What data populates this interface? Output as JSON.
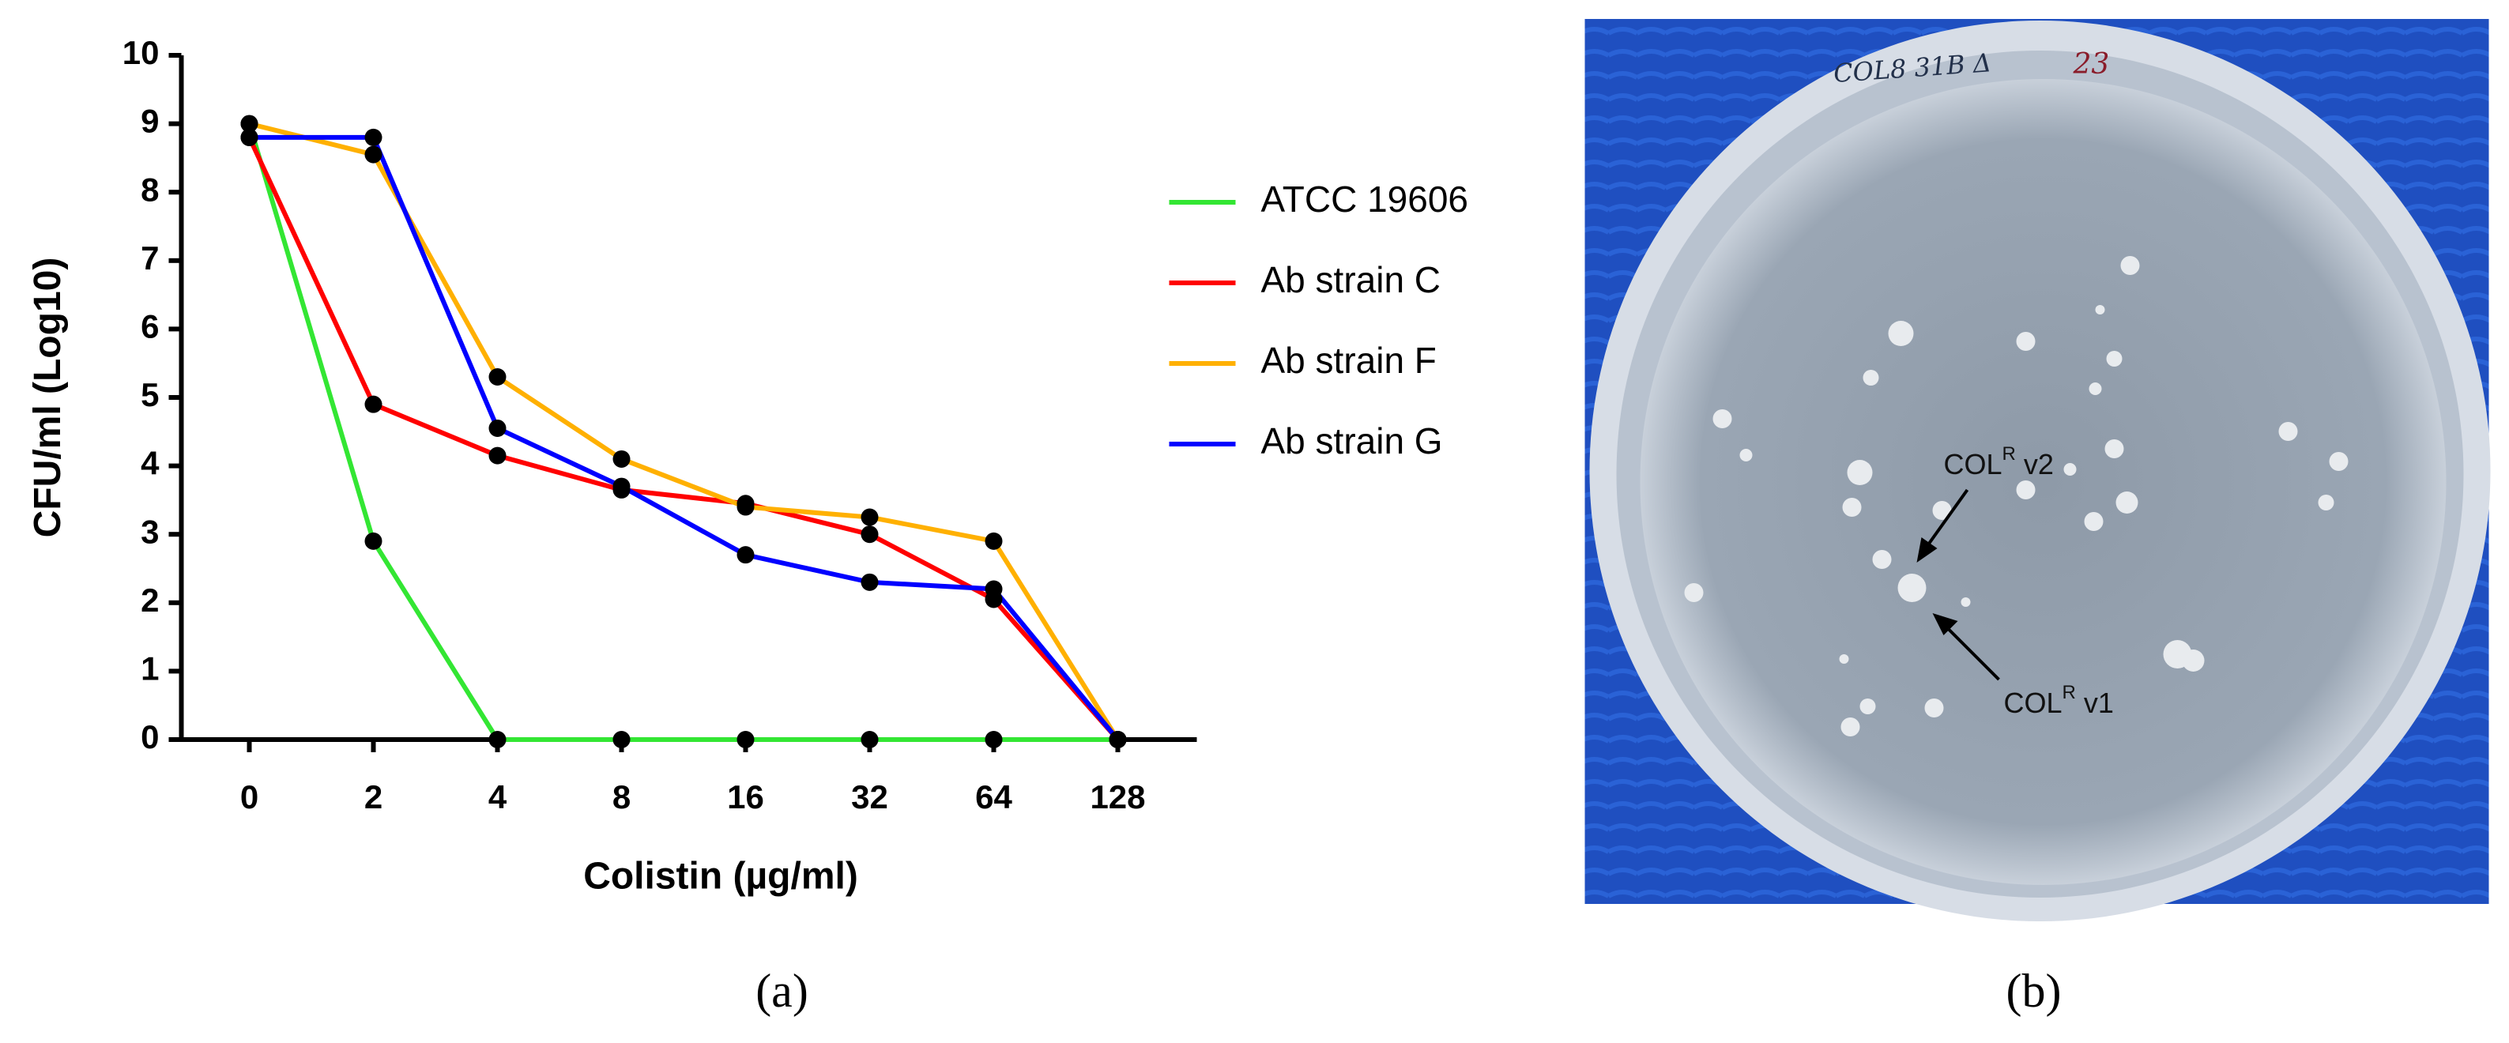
{
  "chart_data": {
    "type": "line",
    "xlabel": "Colistin (µg/ml)",
    "ylabel": "CFU/ml (Log10)",
    "categories": [
      "0",
      "2",
      "4",
      "8",
      "16",
      "32",
      "64",
      "128"
    ],
    "ylim": [
      0,
      10
    ],
    "yticks": [
      0,
      1,
      2,
      3,
      4,
      5,
      6,
      7,
      8,
      9,
      10
    ],
    "grid": false,
    "legend": "right",
    "series": [
      {
        "name": "ATCC 19606",
        "color": "#33e633",
        "values": [
          9.0,
          2.9,
          0,
          0,
          0,
          0,
          0,
          0
        ]
      },
      {
        "name": "Ab strain C",
        "color": "#ff0000",
        "values": [
          8.8,
          4.9,
          4.15,
          3.65,
          3.45,
          3.0,
          2.05,
          0
        ]
      },
      {
        "name": "Ab strain F",
        "color": "#ffb000",
        "values": [
          9.0,
          8.55,
          5.3,
          4.1,
          3.4,
          3.25,
          2.9,
          0
        ]
      },
      {
        "name": "Ab strain G",
        "color": "#0000ff",
        "values": [
          8.8,
          8.8,
          4.55,
          3.7,
          2.7,
          2.3,
          2.2,
          0
        ]
      }
    ]
  },
  "panel_labels": [
    "(a)",
    "(b)"
  ],
  "photo": {
    "handwriting": "COL8  31B Δ",
    "handwriting_red": "23",
    "annotations": [
      {
        "text": "COL",
        "sup": "R",
        "suffix": " v2"
      },
      {
        "text": "COL",
        "sup": "R",
        "suffix": " v1"
      }
    ]
  }
}
